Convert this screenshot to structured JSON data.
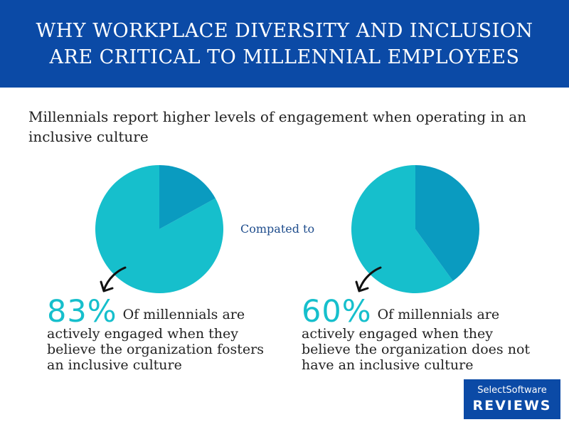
{
  "header": {
    "title_line1": "WHY WORKPLACE DIVERSITY AND INCLUSION",
    "title_line2": "ARE CRITICAL TO MILLENNIAL EMPLOYEES"
  },
  "subtitle": "Millennials report higher levels of engagement when operating in an inclusive culture",
  "compare_label": "Compated to",
  "colors": {
    "header_bg": "#0b4aa6",
    "pie_main": "#16bfcc",
    "pie_rest": "#0a9bc0",
    "percent_text": "#16bfcc",
    "compare_text": "#1e4c8c"
  },
  "chart_data": [
    {
      "type": "pie",
      "values": [
        83,
        17
      ],
      "label_value": "83%",
      "caption": "Of millennials are actively engaged when they believe the organization fosters an inclusive culture"
    },
    {
      "type": "pie",
      "values": [
        60,
        40
      ],
      "label_value": "60%",
      "caption": "Of millennials are actively engaged when they believe the organization does not have an inclusive culture"
    }
  ],
  "logo": {
    "top": "SelectSoftware",
    "bottom": "REVIEWS"
  }
}
